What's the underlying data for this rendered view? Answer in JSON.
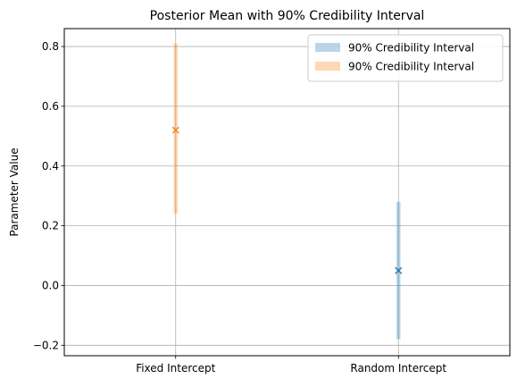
{
  "chart_data": {
    "type": "errorbar",
    "title": "Posterior Mean with 90% Credibility Interval",
    "xlabel": "",
    "ylabel": "Parameter Value",
    "categories": [
      "Fixed Intercept",
      "Random Intercept"
    ],
    "ylim": [
      -0.235,
      0.86
    ],
    "yticks": [
      -0.2,
      0.0,
      0.2,
      0.4,
      0.6,
      0.8
    ],
    "ytick_labels": [
      "−0.2",
      "0.0",
      "0.2",
      "0.4",
      "0.6",
      "0.8"
    ],
    "grid": true,
    "legend_position": "top-right",
    "series": [
      {
        "label": "90% Credibility Interval",
        "category": "Random Intercept",
        "mean": 0.05,
        "lower": -0.18,
        "upper": 0.28,
        "color": "#1f77b4"
      },
      {
        "label": "90% Credibility Interval",
        "category": "Fixed Intercept",
        "mean": 0.52,
        "lower": 0.24,
        "upper": 0.81,
        "color": "#ff7f0e"
      }
    ]
  }
}
